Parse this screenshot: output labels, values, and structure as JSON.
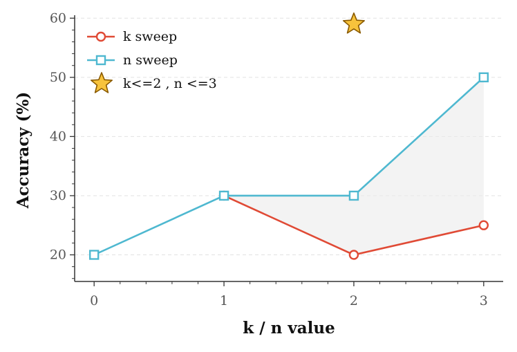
{
  "chart_data": {
    "type": "line",
    "x": [
      0,
      1,
      2,
      3
    ],
    "xlabel": "k / n value",
    "ylabel": "Accuracy (%)",
    "xlim": [
      -0.15,
      3.15
    ],
    "ylim": [
      15.5,
      60.5
    ],
    "xticks": [
      0,
      1,
      2,
      3
    ],
    "yticks": [
      20,
      30,
      40,
      50,
      60
    ],
    "grid": "horizontal-dashed",
    "legend_position": "top-left",
    "series": [
      {
        "name": "k sweep",
        "x": [
          1,
          2,
          3
        ],
        "values": [
          30,
          20,
          25
        ],
        "color": "#e04a35",
        "marker": "circle"
      },
      {
        "name": "n sweep",
        "x": [
          0,
          1,
          2,
          3
        ],
        "values": [
          20,
          30,
          30,
          50
        ],
        "color": "#4eb8d0",
        "marker": "square"
      }
    ],
    "highlight": {
      "name": "k<=2 , n <=3",
      "x": 2,
      "y": 59,
      "marker": "star",
      "color": "#f7c33c",
      "edge": "#8a5a00"
    },
    "fill_between": {
      "between": [
        "k sweep",
        "n sweep"
      ],
      "x_from": 1,
      "x_to": 3,
      "color": "#ebebeb"
    }
  }
}
